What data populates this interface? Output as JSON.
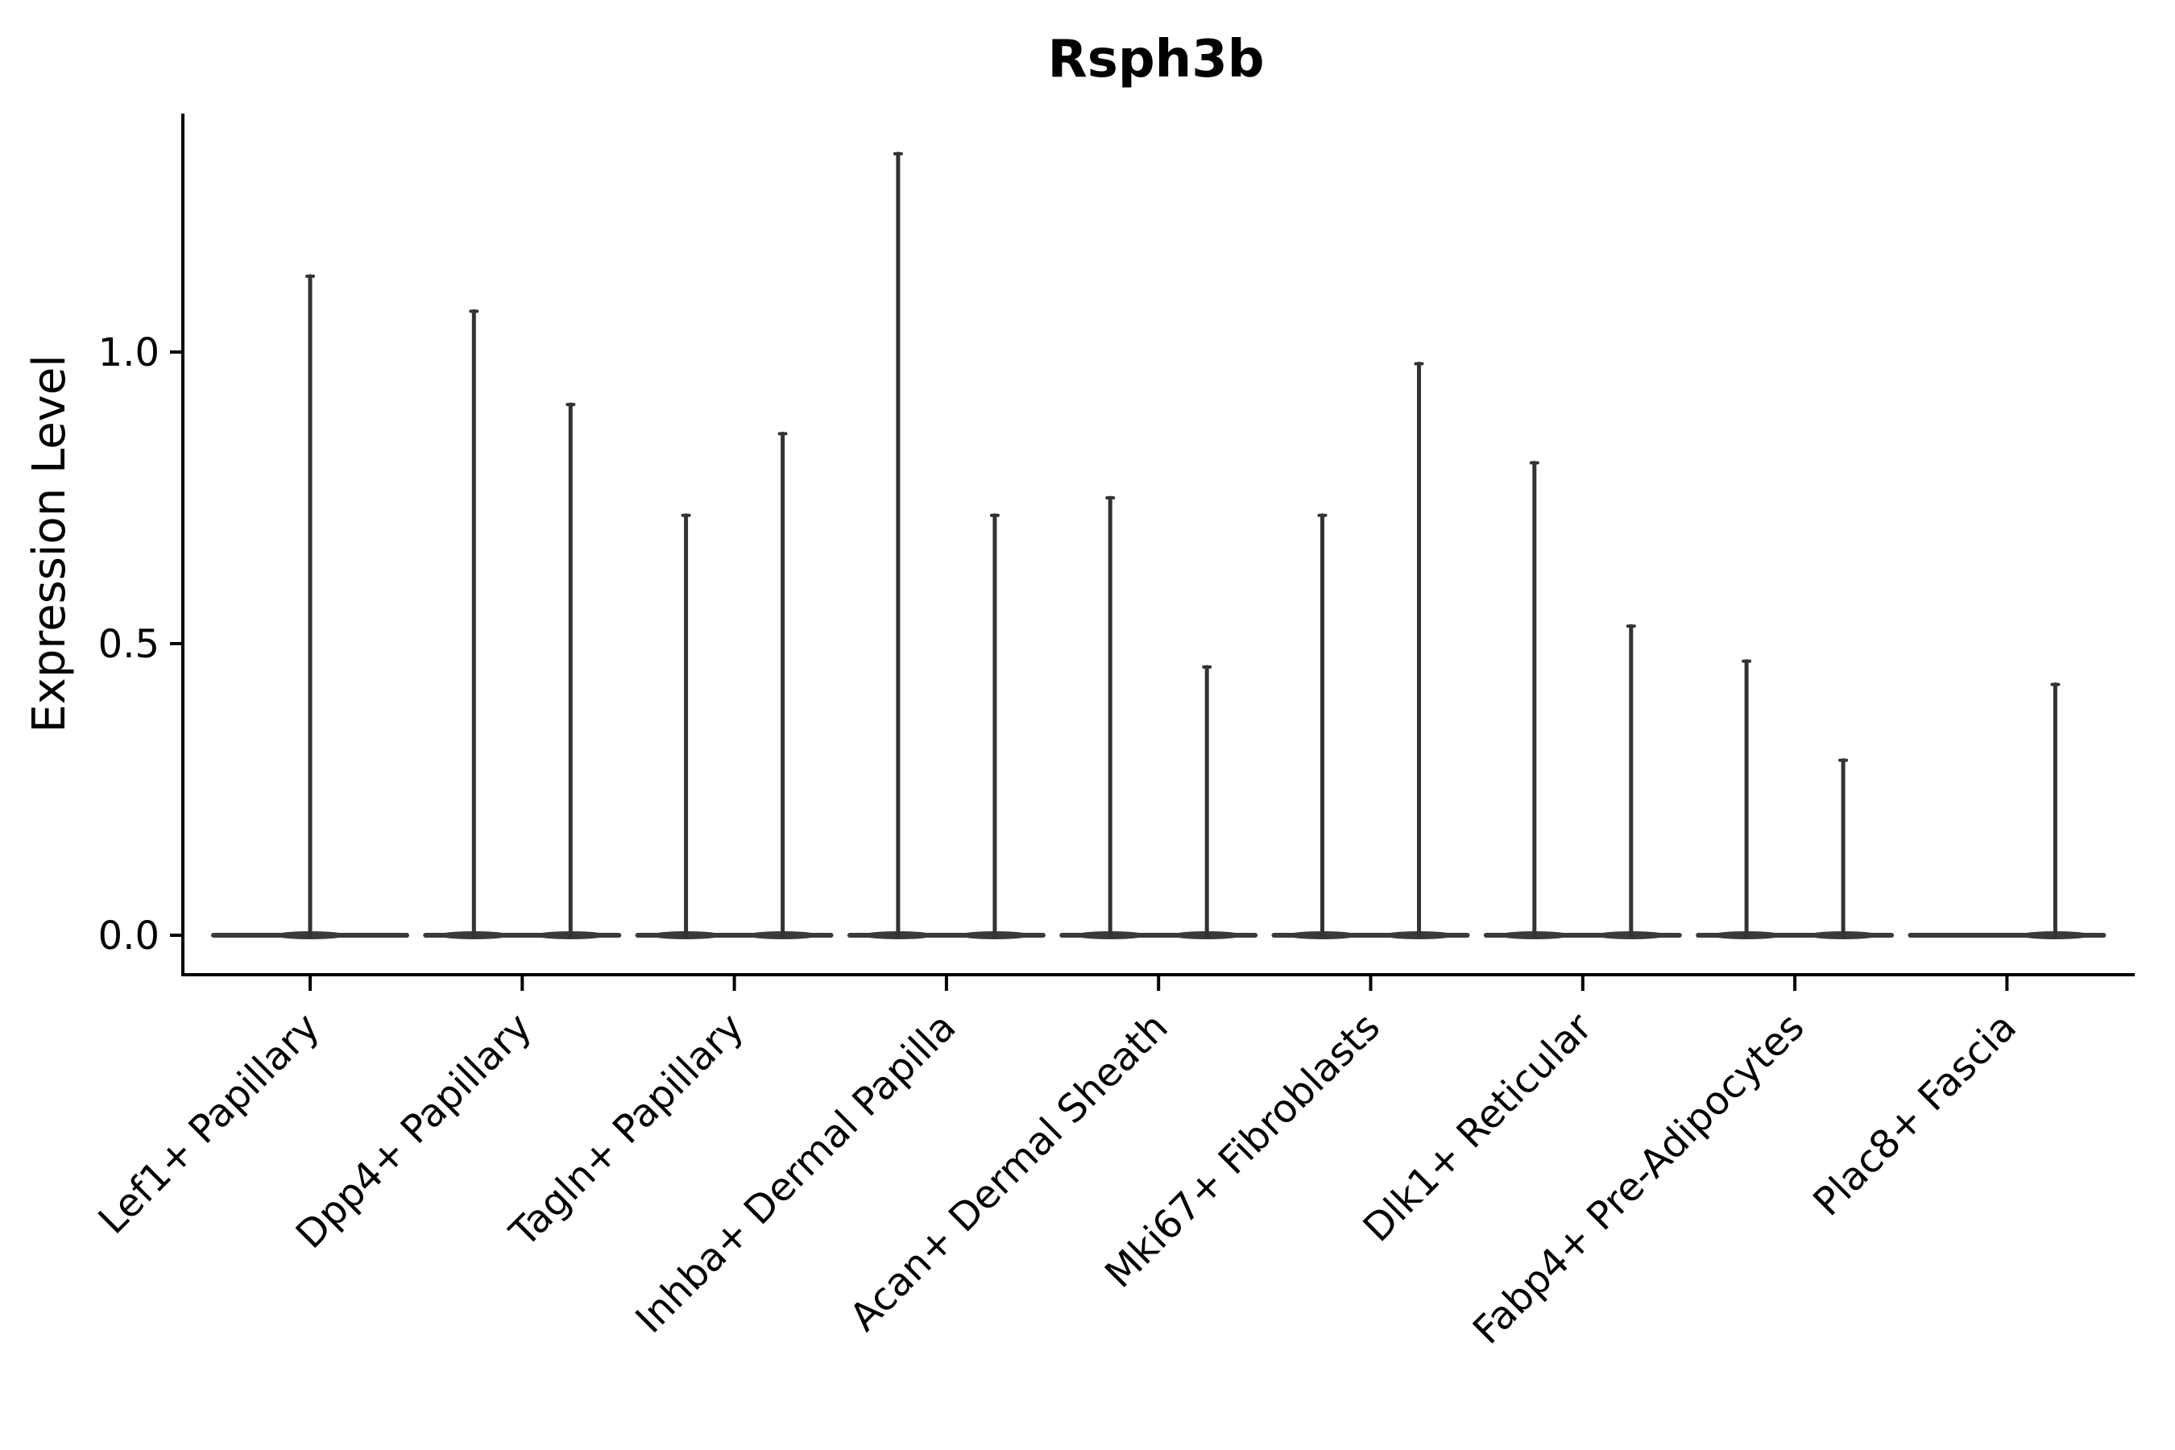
{
  "title": "Rsph3b",
  "chart_data": {
    "type": "violin",
    "title": "Rsph3b",
    "ylabel": "Expression Level",
    "xlabel": "",
    "yticks": [
      "0.0",
      "0.5",
      "1.0"
    ],
    "ylim": [
      -0.07,
      1.41
    ],
    "grid": false,
    "legend": "none",
    "background": "#ffffff",
    "categories": [
      "Lef1+ Papillary",
      "Dpp4+ Papillary",
      "Tagln+ Papillary",
      "Inhba+ Dermal Papilla",
      "Acan+ Dermal Sheath",
      "Mki67+ Fibroblasts",
      "Dlk1+ Reticular",
      "Fabp4+ Pre-Adipocytes",
      "Plac8+ Fascia"
    ],
    "violins": [
      {
        "category": "Lef1+ Papillary",
        "baseline_value": 0,
        "spikes": [
          {
            "pos": "center",
            "max": 1.13
          }
        ]
      },
      {
        "category": "Dpp4+ Papillary",
        "baseline_value": 0,
        "spikes": [
          {
            "pos": "left",
            "max": 1.07
          },
          {
            "pos": "right",
            "max": 0.91
          }
        ]
      },
      {
        "category": "Tagln+ Papillary",
        "baseline_value": 0,
        "spikes": [
          {
            "pos": "left",
            "max": 0.72
          },
          {
            "pos": "right",
            "max": 0.86
          }
        ]
      },
      {
        "category": "Inhba+ Dermal Papilla",
        "baseline_value": 0,
        "spikes": [
          {
            "pos": "left",
            "max": 1.34
          },
          {
            "pos": "right",
            "max": 0.72
          }
        ]
      },
      {
        "category": "Acan+ Dermal Sheath",
        "baseline_value": 0,
        "spikes": [
          {
            "pos": "left",
            "max": 0.75
          },
          {
            "pos": "right",
            "max": 0.46
          }
        ]
      },
      {
        "category": "Mki67+ Fibroblasts",
        "baseline_value": 0,
        "spikes": [
          {
            "pos": "left",
            "max": 0.72
          },
          {
            "pos": "right",
            "max": 0.98
          }
        ]
      },
      {
        "category": "Dlk1+ Reticular",
        "baseline_value": 0,
        "spikes": [
          {
            "pos": "left",
            "max": 0.81
          },
          {
            "pos": "right",
            "max": 0.53
          }
        ]
      },
      {
        "category": "Fabp4+ Pre-Adipocytes",
        "baseline_value": 0,
        "spikes": [
          {
            "pos": "left",
            "max": 0.47
          },
          {
            "pos": "right",
            "max": 0.3
          }
        ]
      },
      {
        "category": "Plac8+ Fascia",
        "baseline_value": 0,
        "spikes": [
          {
            "pos": "right",
            "max": 0.43
          }
        ]
      }
    ],
    "colors": {
      "violin_stroke": "#333333",
      "violin_base": "#3a3a3a",
      "axis": "#000000",
      "text": "#000000",
      "background": "#ffffff"
    }
  }
}
